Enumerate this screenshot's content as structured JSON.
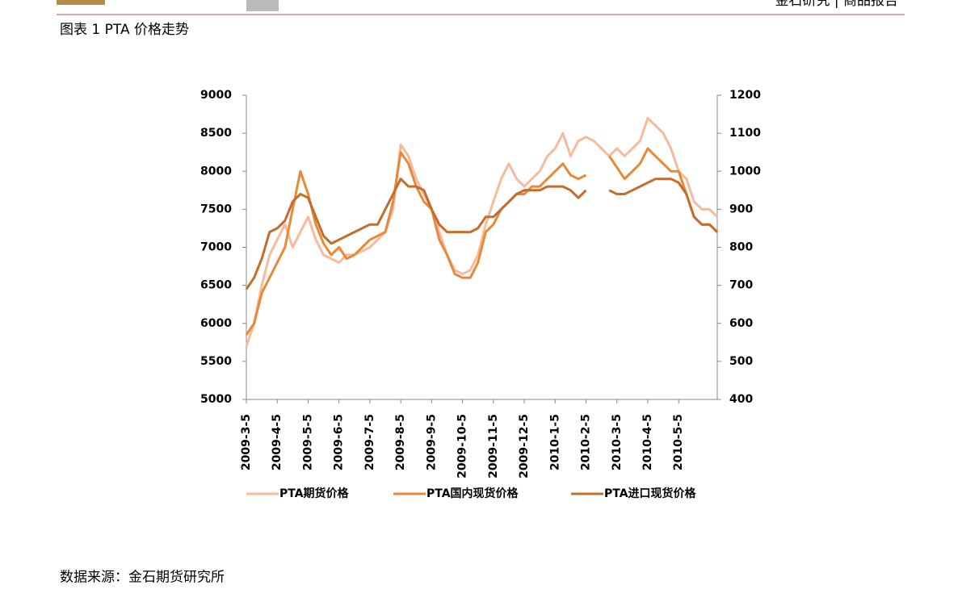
{
  "header": {
    "right_text": "金石研究 | 商品报告"
  },
  "figure_title": "图表 1 PTA 价格走势",
  "source": "数据来源：金石期货研究所",
  "chart_data": {
    "type": "line",
    "categories": [
      "2009-3-5",
      null,
      null,
      null,
      "2009-4-5",
      null,
      null,
      null,
      "2009-5-5",
      null,
      null,
      null,
      "2009-6-5",
      null,
      null,
      null,
      "2009-7-5",
      null,
      null,
      null,
      "2009-8-5",
      null,
      null,
      null,
      "2009-9-5",
      null,
      null,
      null,
      "2009-10-5",
      null,
      null,
      null,
      "2009-11-5",
      null,
      null,
      null,
      "2009-12-5",
      null,
      null,
      null,
      "2010-1-5",
      null,
      null,
      null,
      "2010-2-5",
      null,
      null,
      null,
      "2010-3-5",
      null,
      null,
      null,
      "2010-4-5",
      null,
      null,
      null,
      "2010-5-5",
      null,
      null,
      null,
      null,
      null
    ],
    "ylim": [
      5000,
      9000
    ],
    "yticks": [
      5000,
      5500,
      6000,
      6500,
      7000,
      7500,
      8000,
      8500,
      9000
    ],
    "y2lim": [
      400,
      1200
    ],
    "y2ticks": [
      400,
      500,
      600,
      700,
      800,
      900,
      1000,
      1100,
      1200
    ],
    "series": [
      {
        "name": "PTA期货价格",
        "color": "#f5bb9c",
        "values": [
          5700,
          6000,
          6500,
          6900,
          7100,
          7300,
          7000,
          7200,
          7400,
          7100,
          6900,
          6850,
          6800,
          6900,
          6900,
          6950,
          7000,
          7100,
          7200,
          7500,
          8350,
          8200,
          7900,
          7700,
          7500,
          7200,
          6900,
          6700,
          6650,
          6700,
          6900,
          7300,
          7600,
          7900,
          8100,
          7900,
          7800,
          7900,
          8000,
          8200,
          8300,
          8500,
          8200,
          8400,
          8450,
          8400,
          8300,
          8200,
          8300,
          8200,
          8300,
          8400,
          8700,
          8600,
          8500,
          8300,
          8000,
          7900,
          7600,
          7500,
          7500,
          7400
        ]
      },
      {
        "name": "PTA国内现货价格",
        "color": "#e8893a",
        "values": [
          5850,
          6000,
          6400,
          6600,
          6800,
          7000,
          7500,
          8000,
          7700,
          7300,
          7050,
          6900,
          7000,
          6850,
          6900,
          7000,
          7100,
          7150,
          7200,
          7600,
          8250,
          8100,
          7800,
          7600,
          7500,
          7100,
          6900,
          6650,
          6600,
          6600,
          6800,
          7200,
          7300,
          7500,
          7600,
          7700,
          7700,
          7800,
          7800,
          7900,
          8000,
          8100,
          7950,
          7900,
          7950,
          null,
          null,
          8200,
          8050,
          7900,
          8000,
          8100,
          8300,
          8200,
          8100,
          8000,
          8000,
          7700,
          7400,
          7300,
          7300,
          7200
        ]
      },
      {
        "name": "PTA进口现货价格",
        "color": "#c56b2c",
        "axis": "y2",
        "values": [
          690,
          720,
          770,
          840,
          850,
          870,
          920,
          940,
          930,
          880,
          830,
          810,
          820,
          830,
          840,
          850,
          860,
          860,
          900,
          940,
          980,
          960,
          960,
          950,
          900,
          860,
          840,
          840,
          840,
          840,
          850,
          880,
          880,
          900,
          920,
          940,
          950,
          950,
          950,
          960,
          960,
          960,
          950,
          930,
          950,
          null,
          null,
          950,
          940,
          940,
          950,
          960,
          970,
          980,
          980,
          980,
          970,
          940,
          880,
          860,
          860,
          840
        ]
      }
    ]
  }
}
